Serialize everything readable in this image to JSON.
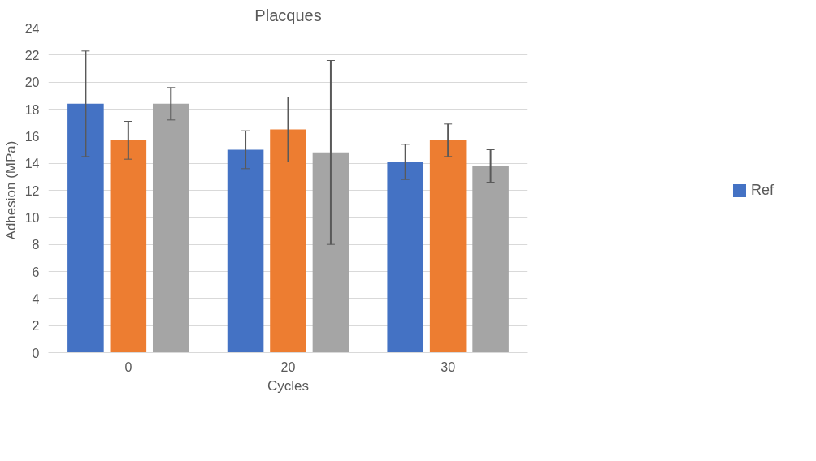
{
  "chart_data": {
    "type": "bar",
    "title": "Placques",
    "xlabel": "Cycles",
    "ylabel": "Adhesion (MPa)",
    "categories": [
      "0",
      "20",
      "30"
    ],
    "series": [
      {
        "name": "Ref",
        "color": "#4472c4",
        "values": [
          18.4,
          15.0,
          14.1
        ],
        "errors": [
          3.9,
          1.4,
          1.3
        ]
      },
      {
        "color": "#ed7d31",
        "values": [
          15.7,
          16.5,
          15.7
        ],
        "errors": [
          1.4,
          2.4,
          1.2
        ]
      },
      {
        "color": "#a5a5a5",
        "values": [
          18.4,
          14.8,
          13.8
        ],
        "errors": [
          1.2,
          6.8,
          1.2
        ]
      }
    ],
    "ylim": [
      0,
      24
    ],
    "yticks": [
      0,
      2,
      4,
      6,
      8,
      10,
      12,
      14,
      16,
      18,
      20,
      22,
      24
    ],
    "grid": "y",
    "legend": "right"
  }
}
